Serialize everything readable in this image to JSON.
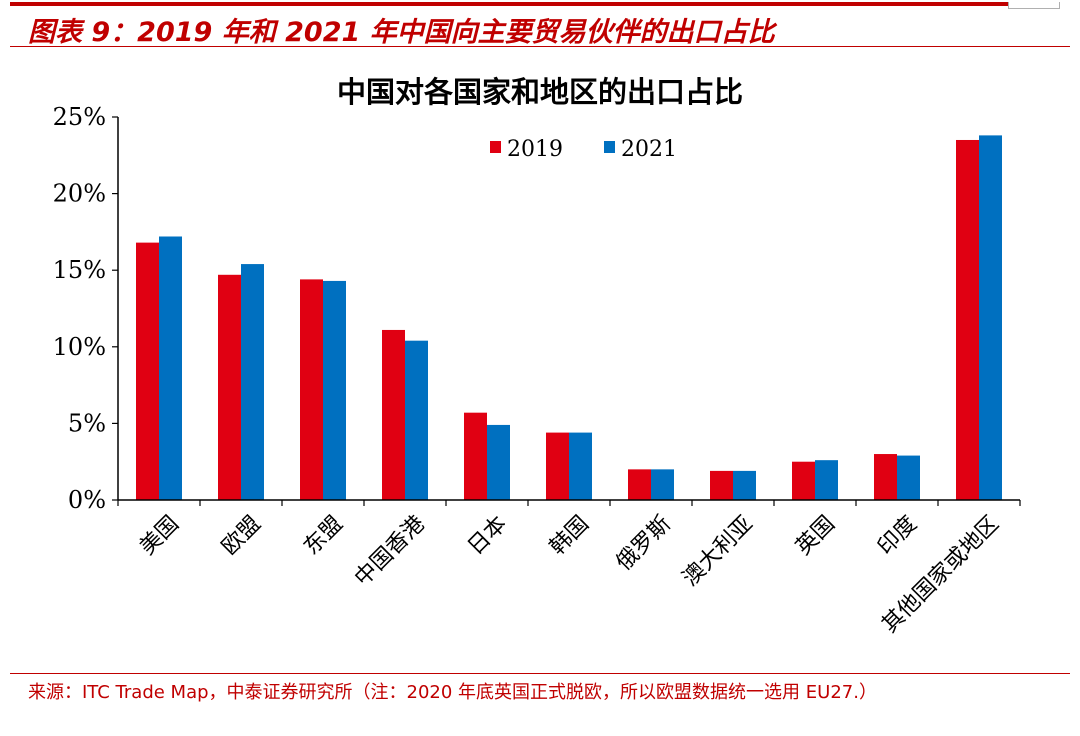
{
  "figure": {
    "title": "图表 9：2019 年和 2021 年中国向主要贸易伙伴的出口占比",
    "source": "来源：ITC Trade Map，中泰证券研究所（注：2020 年底英国正式脱欧，所以欧盟数据统一选用 EU27.）"
  },
  "chart_data": {
    "type": "bar",
    "title": "中国对各国家和地区的出口占比",
    "categories": [
      "美国",
      "欧盟",
      "东盟",
      "中国香港",
      "日本",
      "韩国",
      "俄罗斯",
      "澳大利亚",
      "英国",
      "印度",
      "其他国家或地区"
    ],
    "series": [
      {
        "name": "2019",
        "color": "#e00012",
        "values": [
          16.8,
          14.7,
          14.4,
          11.1,
          5.7,
          4.4,
          2.0,
          1.9,
          2.5,
          3.0,
          23.5
        ]
      },
      {
        "name": "2021",
        "color": "#0070c0",
        "values": [
          17.2,
          15.4,
          14.3,
          10.4,
          4.9,
          4.4,
          2.0,
          1.9,
          2.6,
          2.9,
          23.8
        ]
      }
    ],
    "ylim": [
      0,
      25
    ],
    "yticks": [
      "0%",
      "5%",
      "10%",
      "15%",
      "20%",
      "25%"
    ],
    "legend_position": "top-center",
    "grid": false
  }
}
